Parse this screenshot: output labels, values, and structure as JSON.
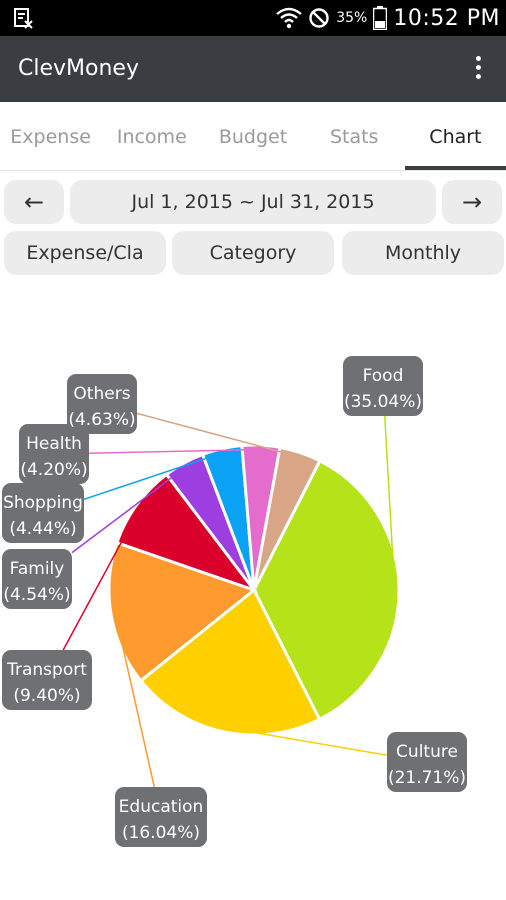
{
  "status_bar": {
    "battery_percent": "35%",
    "time": "10:52 PM"
  },
  "app_bar": {
    "title": "ClevMoney"
  },
  "tabs": [
    {
      "label": "Expense",
      "active": false
    },
    {
      "label": "Income",
      "active": false
    },
    {
      "label": "Budget",
      "active": false
    },
    {
      "label": "Stats",
      "active": false
    },
    {
      "label": "Chart",
      "active": true
    }
  ],
  "controls": {
    "prev_label": "←",
    "date_range": "Jul 1, 2015 ~ Jul 31, 2015",
    "next_label": "→",
    "filters": [
      "Expense/Cla",
      "Category",
      "Monthly"
    ]
  },
  "chart_data": {
    "type": "pie",
    "slices": [
      {
        "name": "Food",
        "percent_label": "(35.04%)",
        "value": 35.04,
        "color": "#b5e218"
      },
      {
        "name": "Culture",
        "percent_label": "(21.71%)",
        "value": 21.71,
        "color": "#ffd000"
      },
      {
        "name": "Education",
        "percent_label": "(16.04%)",
        "value": 16.04,
        "color": "#ff9a2e"
      },
      {
        "name": "Transport",
        "percent_label": "(9.40%)",
        "value": 9.4,
        "color": "#d9002c"
      },
      {
        "name": "Family",
        "percent_label": "(4.54%)",
        "value": 4.54,
        "color": "#9c3ee0"
      },
      {
        "name": "Shopping",
        "percent_label": "(4.44%)",
        "value": 4.44,
        "color": "#0aa2f5"
      },
      {
        "name": "Health",
        "percent_label": "(4.20%)",
        "value": 4.2,
        "color": "#e46ccc"
      },
      {
        "name": "Others",
        "percent_label": "(4.63%)",
        "value": 4.63,
        "color": "#d9a587"
      }
    ],
    "label_box_color": "#6f7074"
  }
}
